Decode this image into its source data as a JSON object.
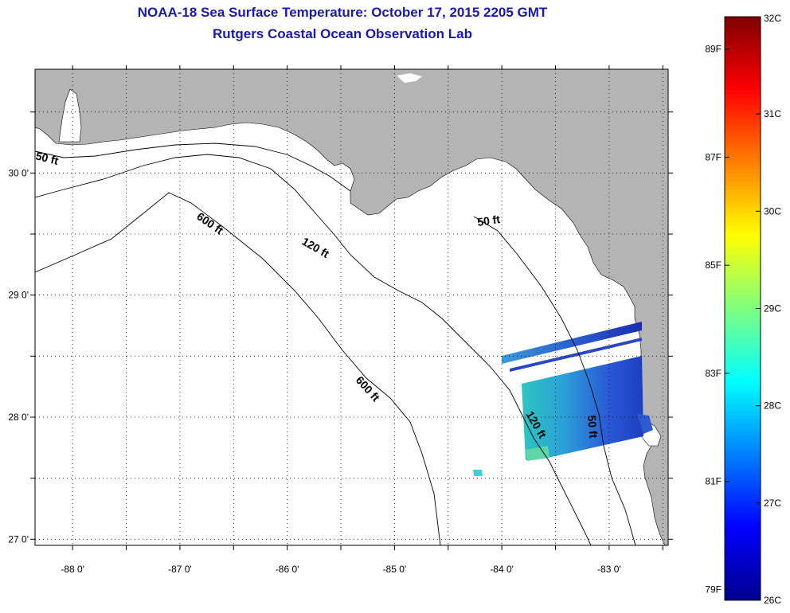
{
  "title": "NOAA-18 Sea Surface Temperature:  October 17, 2015 2205 GMT",
  "subtitle": "Rutgers Coastal Ocean Observation Lab",
  "map": {
    "lon_range": [
      -88.35,
      -82.45
    ],
    "lat_range": [
      26.95,
      30.85
    ],
    "lon_ticks": [
      {
        "value": -88,
        "label": "-88 0'"
      },
      {
        "value": -87,
        "label": "-87 0'"
      },
      {
        "value": -86,
        "label": "-86 0'"
      },
      {
        "value": -85,
        "label": "-85 0'"
      },
      {
        "value": -84,
        "label": "-84 0'"
      },
      {
        "value": -83,
        "label": "-83 0'"
      }
    ],
    "lat_ticks": [
      {
        "value": 30,
        "label": "30 0'"
      },
      {
        "value": 29,
        "label": "29 0'"
      },
      {
        "value": 28,
        "label": "28 0'"
      },
      {
        "value": 27,
        "label": "27 0'"
      }
    ],
    "grid": "dotted",
    "land_color": "#b4b4b4",
    "ocean_color": "#ffffff",
    "contour_labels": [
      {
        "text": "50 ft"
      },
      {
        "text": "600 ft"
      },
      {
        "text": "120 ft"
      },
      {
        "text": "50 ft"
      },
      {
        "text": "600 ft"
      },
      {
        "text": "120 ft"
      },
      {
        "text": "50 ft"
      }
    ]
  },
  "colorbar": {
    "colormap": "jet",
    "range_c": [
      26,
      32
    ],
    "celsius_labels": [
      {
        "value": 32,
        "label": "32C"
      },
      {
        "value": 31,
        "label": "31C"
      },
      {
        "value": 30,
        "label": "30C"
      },
      {
        "value": 29,
        "label": "29C"
      },
      {
        "value": 28,
        "label": "28C"
      },
      {
        "value": 27,
        "label": "27C"
      },
      {
        "value": 26,
        "label": "26C"
      }
    ],
    "fahrenheit_labels": [
      {
        "value": 89,
        "label": "89F"
      },
      {
        "value": 87,
        "label": "87F"
      },
      {
        "value": 85,
        "label": "85F"
      },
      {
        "value": 83,
        "label": "83F"
      },
      {
        "value": 81,
        "label": "81F"
      },
      {
        "value": 79,
        "label": "79F"
      }
    ]
  }
}
